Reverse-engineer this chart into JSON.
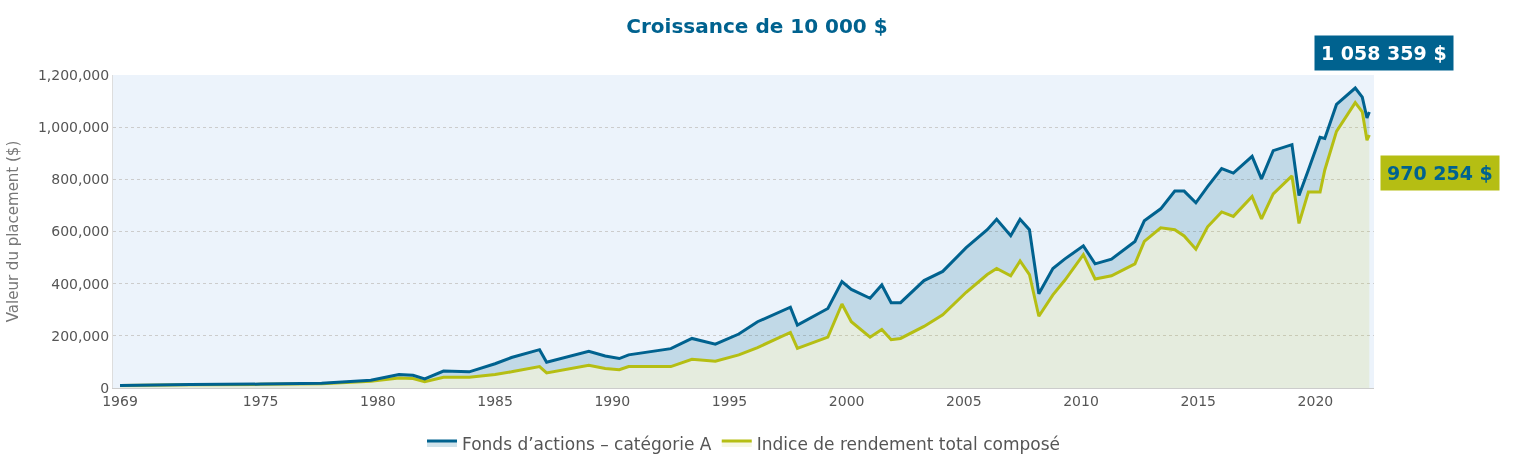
{
  "chart_data": {
    "type": "area",
    "title": "Croissance de 10 000 $",
    "ylabel": "Valeur du placement ($)",
    "x": [
      1969,
      1972,
      1975,
      1977.6,
      1979.7,
      1980.9,
      1981.5,
      1982,
      1982.8,
      1983.9,
      1985,
      1985.7,
      1986.9,
      1987.2,
      1989,
      1989.7,
      1990.3,
      1990.7,
      1992.5,
      1993.4,
      1994.4,
      1995.4,
      1996.2,
      1997.6,
      1997.9,
      1999.2,
      1999.8,
      2000.2,
      2001,
      2001.5,
      2001.9,
      2002.3,
      2003.3,
      2004.1,
      2005.1,
      2006,
      2006.4,
      2007,
      2007.4,
      2007.8,
      2008.2,
      2008.8,
      2009.3,
      2010.1,
      2010.6,
      2011.3,
      2012.3,
      2012.7,
      2013.4,
      2014,
      2014.4,
      2014.9,
      2015.4,
      2016,
      2016.5,
      2017.3,
      2017.7,
      2018.2,
      2019,
      2019.3,
      2019.7,
      2020.2,
      2020.4,
      2020.9,
      2021.7,
      2022,
      2022.2,
      2022.3
    ],
    "series": [
      {
        "name": "Fonds d’actions – catégorie A",
        "color": "#00628f",
        "values": [
          10000,
          13000,
          15000,
          18000,
          30000,
          52000,
          49000,
          35000,
          65000,
          62000,
          93000,
          117000,
          147000,
          99000,
          141000,
          123000,
          113000,
          127000,
          151000,
          190000,
          168000,
          207000,
          254000,
          310000,
          241000,
          305000,
          408000,
          378000,
          344000,
          395000,
          327000,
          327000,
          412000,
          447000,
          538000,
          607000,
          647000,
          584000,
          647000,
          607000,
          361000,
          458000,
          494000,
          545000,
          476000,
          494000,
          562000,
          641000,
          687000,
          755000,
          755000,
          710000,
          772000,
          841000,
          824000,
          888000,
          802000,
          910000,
          933000,
          738000,
          836000,
          961000,
          957000,
          1087000,
          1150000,
          1115000,
          1035000,
          1058000
        ]
      },
      {
        "name": "Indice de rendement total composé",
        "color": "#b5be13",
        "values": [
          10000,
          12000,
          14000,
          16000,
          26000,
          38000,
          36000,
          24000,
          41000,
          41000,
          52000,
          62000,
          82000,
          58000,
          87000,
          75000,
          70000,
          82000,
          82000,
          110000,
          103000,
          127000,
          155000,
          213000,
          152000,
          195000,
          322000,
          254000,
          195000,
          224000,
          185000,
          190000,
          236000,
          281000,
          367000,
          435000,
          458000,
          430000,
          487000,
          435000,
          275000,
          357000,
          412000,
          511000,
          418000,
          430000,
          476000,
          562000,
          614000,
          607000,
          583000,
          532000,
          618000,
          675000,
          658000,
          734000,
          648000,
          744000,
          813000,
          631000,
          751000,
          751000,
          836000,
          984000,
          1094000,
          1059000,
          950000,
          970000
        ]
      }
    ],
    "annotations": [
      "1 058 359 $",
      "970 254 $"
    ],
    "xlim": [
      1968.7,
      2022.5
    ],
    "xticks": [
      1969,
      1975,
      1980,
      1985,
      1990,
      1995,
      2000,
      2005,
      2010,
      2015,
      2020
    ],
    "ylim": [
      0,
      1200000
    ],
    "yticks": [
      0,
      {
        "value": 200000,
        "label": "200,000"
      },
      {
        "value": 400000,
        "label": "400,000"
      },
      {
        "value": 600000,
        "label": "600,000"
      },
      {
        "value": 800000,
        "label": "800,000"
      },
      {
        "value": 1000000,
        "label": "1,000,000"
      },
      {
        "value": 1200000,
        "label": "1,200,000"
      }
    ],
    "grid": "y",
    "legend": "bottom"
  }
}
